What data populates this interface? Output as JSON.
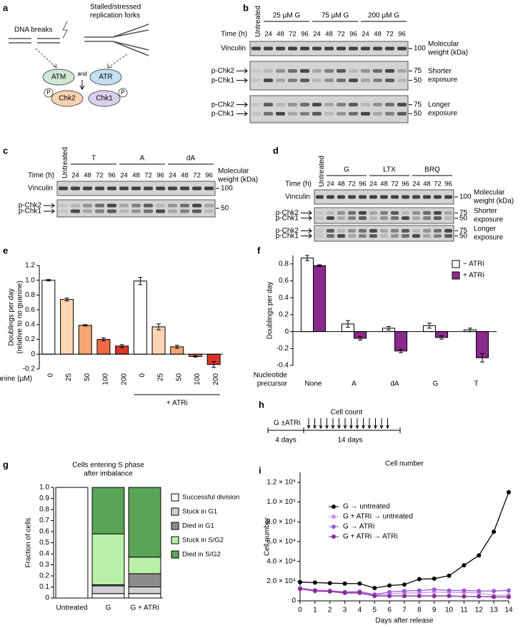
{
  "figure": {
    "panel_labels": [
      "a",
      "b",
      "c",
      "d",
      "e",
      "f",
      "g",
      "h",
      "i"
    ],
    "diagram": {
      "dna_breaks": "DNA breaks",
      "forks": [
        "Stalled/stressed",
        "replication forks"
      ],
      "atm": "ATM",
      "and": "and",
      "atr": "ATR",
      "chk2": "Chk2",
      "chk1": "Chk1",
      "phospho": "P"
    },
    "blots": [
      {
        "untreated": "Untreated",
        "groups": [
          "25 µM G",
          "75 µM G",
          "200 µM G"
        ],
        "time_label": "Time (h)",
        "times": [
          24,
          48,
          72,
          96
        ],
        "mw_label": [
          "Molecular",
          "weight (kDa)"
        ],
        "strips": [
          {
            "labels": [
              "Vinculin"
            ],
            "markers": [
              100
            ]
          },
          {
            "labels": [
              "p-Chk2",
              "p-Chk1"
            ],
            "markers": [
              75,
              50
            ],
            "exposure": [
              "Shorter",
              "exposure"
            ]
          },
          {
            "labels": [
              "p-Chk2",
              "p-Chk1"
            ],
            "markers": [
              75,
              50
            ],
            "exposure": [
              "Longer",
              "exposure"
            ]
          }
        ]
      },
      {
        "untreated": "Untreated",
        "groups": [
          "T",
          "A",
          "dA"
        ],
        "time_label": "Time (h)",
        "times": [
          24,
          48,
          72,
          96
        ],
        "mw_label": [
          "Molecular",
          "weight (kDa)"
        ],
        "strips": [
          {
            "labels": [
              "Vinculin"
            ],
            "markers": [
              100
            ]
          },
          {
            "labels": [
              "p-Chk2",
              "p-Chk1"
            ],
            "markers": [
              50
            ]
          }
        ]
      },
      {
        "untreated": "Untreated",
        "groups": [
          "G",
          "LTX",
          "BRQ"
        ],
        "time_label": "Time (h)",
        "times": [
          24,
          48,
          72,
          96
        ],
        "mw_label": [
          "Molecular",
          "weight (kDa)"
        ],
        "strips": [
          {
            "labels": [
              "Vinculin"
            ],
            "markers": [
              100
            ]
          },
          {
            "labels": [
              "p-Chk2",
              "p-Chk1"
            ],
            "markers": [
              75,
              50
            ],
            "exposure": [
              "Shorter",
              "exposure"
            ]
          },
          {
            "labels": [
              "p-Chk2",
              "p-Chk1"
            ],
            "markers": [
              75,
              50
            ],
            "exposure": [
              "Longer",
              "exposure"
            ]
          }
        ]
      }
    ],
    "timeline": {
      "treatment": "G ±ATRi",
      "count": "Cell count",
      "pre": "4 days",
      "post": "14 days"
    }
  },
  "chart_data": [
    {
      "type": "bar",
      "y_label": [
        "Doublings per day",
        "(relative to no guanine)"
      ],
      "x_label": "Guanine (µM)",
      "group_label": "+ ATRi",
      "categories": [
        "0",
        "25",
        "50",
        "100",
        "200",
        "0",
        "25",
        "50",
        "100",
        "200"
      ],
      "values": [
        1.0,
        0.74,
        0.39,
        0.2,
        0.11,
        0.99,
        0.37,
        0.1,
        -0.03,
        -0.14
      ],
      "errors": [
        0.01,
        0.02,
        0.01,
        0.02,
        0.02,
        0.05,
        0.04,
        0.02,
        0.01,
        0.04
      ],
      "colors": [
        "#ffffff",
        "#fcd5b5",
        "#f5a673",
        "#f06a45",
        "#d9352b",
        "#ffffff",
        "#fcd5b5",
        "#f5a673",
        "#f06a45",
        "#d9352b"
      ],
      "ylim": [
        -0.2,
        1.2
      ],
      "yticks": [
        -0.2,
        0,
        0.2,
        0.4,
        0.6,
        0.8,
        {
          "value": 1,
          "label": "1.0"
        },
        1.2
      ]
    },
    {
      "type": "grouped_bar",
      "y_label": [
        "Doublings per day"
      ],
      "x_label": [
        "Nucleotide",
        "precursor"
      ],
      "categories": [
        "None",
        "A",
        "dA",
        "G",
        "T"
      ],
      "series": [
        {
          "name": "− ATRi",
          "color": "#ffffff",
          "values": [
            0.87,
            0.09,
            0.04,
            0.07,
            0.02
          ],
          "errors": [
            0.03,
            0.04,
            0.02,
            0.03,
            0.02
          ]
        },
        {
          "name": "+ ATRi",
          "color": "#8b2a8b",
          "values": [
            0.78,
            -0.08,
            -0.23,
            -0.07,
            -0.31
          ],
          "errors": [
            0.01,
            0.02,
            0.02,
            0.02,
            0.05
          ]
        }
      ],
      "ylim": [
        -0.4,
        0.9
      ],
      "yticks": [
        -0.4,
        -0.2,
        0,
        0.2,
        0.4,
        0.6,
        0.8
      ],
      "legend": "upper right"
    },
    {
      "type": "stacked_bar",
      "title": [
        "Cells entering S phase",
        "after imbalance"
      ],
      "y_label": [
        "Fraction of cells"
      ],
      "categories": [
        "Untreated",
        "G",
        "G + ATRi"
      ],
      "series": [
        {
          "name": "Successful division",
          "color": "#ffffff",
          "values": [
            1.0,
            0.04,
            0.04
          ]
        },
        {
          "name": "Stuck in G1",
          "color": "#d0d0d0",
          "values": [
            0,
            0.07,
            0.06
          ]
        },
        {
          "name": "Died in G1",
          "color": "#8c8c8c",
          "values": [
            0,
            0.01,
            0.12
          ]
        },
        {
          "name": "Stuck in S/G2",
          "color": "#b9f0a8",
          "values": [
            0,
            0.46,
            0.15
          ]
        },
        {
          "name": "Died in S/G2",
          "color": "#5aa455",
          "values": [
            0,
            0.42,
            0.63
          ]
        }
      ],
      "ylim": [
        0,
        1
      ],
      "yticks": [
        0,
        0.1,
        0.2,
        0.3,
        0.4,
        0.5,
        0.6,
        0.7,
        0.8,
        0.9,
        {
          "value": 1,
          "label": "1.0"
        }
      ],
      "legend": "right"
    },
    {
      "type": "line",
      "title": "Cell number",
      "y_label": [
        "Cell number"
      ],
      "x_label": "Days after release",
      "x": [
        0,
        1,
        2,
        3,
        4,
        5,
        6,
        7,
        8,
        9,
        10,
        11,
        12,
        13,
        14
      ],
      "series": [
        {
          "name": "G → untreated",
          "color": "#000000",
          "values": [
            19000,
            18500,
            18000,
            17500,
            17500,
            13000,
            15500,
            16500,
            22000,
            22500,
            25500,
            36000,
            46000,
            70000,
            110000
          ]
        },
        {
          "name": "G + ATRi → untreated",
          "color": "#c993e6",
          "values": [
            13000,
            11000,
            10500,
            9000,
            8500,
            6000,
            7000,
            8000,
            8000,
            9000,
            8500,
            8500,
            8000,
            5500,
            6000
          ]
        },
        {
          "name": "G → ATRi",
          "color": "#9a5ad8",
          "values": [
            12500,
            10500,
            10000,
            9000,
            9500,
            6500,
            9000,
            10000,
            10500,
            11500,
            10500,
            10500,
            10000,
            10000,
            10500
          ]
        },
        {
          "name": "G + ATRi → ATRi",
          "color": "#8a2a9a",
          "values": [
            12000,
            10000,
            9500,
            8000,
            8000,
            5000,
            5000,
            5000,
            5000,
            5000,
            5000,
            4500,
            4500,
            4000,
            4000
          ]
        }
      ],
      "xlim": [
        0,
        14
      ],
      "xticks": [
        0,
        1,
        2,
        3,
        4,
        5,
        6,
        7,
        8,
        9,
        10,
        11,
        12,
        13,
        14
      ],
      "ylim": [
        0,
        130000
      ],
      "yticks": [
        0,
        {
          "value": 20000,
          "label": "2.0 × 10⁴"
        },
        {
          "value": 40000,
          "label": "4.0 × 10⁴"
        },
        {
          "value": 60000,
          "label": "6.0 × 10⁴"
        },
        {
          "value": 80000,
          "label": "8.0 × 10⁴"
        },
        {
          "value": 100000,
          "label": "1.0 × 10⁵"
        },
        {
          "value": 120000,
          "label": "1.2 × 10⁵"
        }
      ],
      "legend": "upper left"
    }
  ]
}
